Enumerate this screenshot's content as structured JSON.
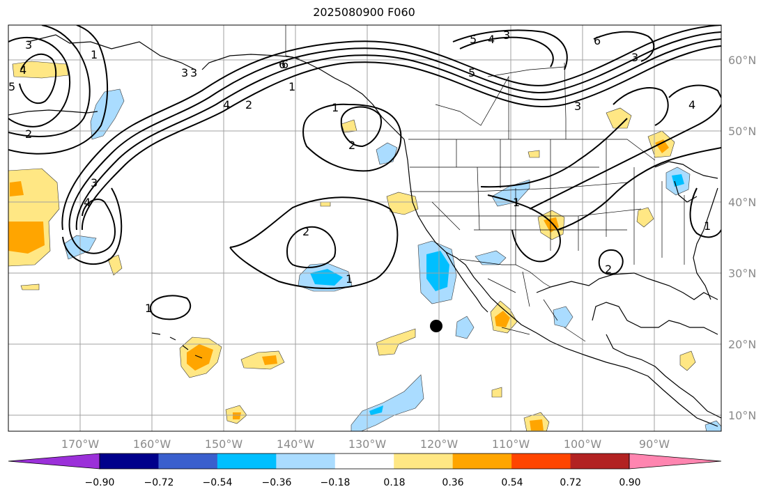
{
  "title": "2025080900 F060",
  "map": {
    "lon_ticks": [
      "170°W",
      "160°W",
      "150°W",
      "140°W",
      "130°W",
      "120°W",
      "110°W",
      "100°W",
      "90°W"
    ],
    "lat_ticks": [
      "60°N",
      "50°N",
      "40°N",
      "30°N",
      "20°N",
      "10°N"
    ],
    "marker": {
      "lon": -120,
      "lat": 22.5,
      "label": ""
    },
    "contour_labels": [
      "3",
      "4",
      "5",
      "2",
      "1",
      "6",
      "4",
      "3",
      "1",
      "3",
      "2",
      "4",
      "3",
      "2",
      "1",
      "2",
      "1",
      "6",
      "5",
      "3",
      "5",
      "4",
      "3",
      "6",
      "3",
      "4",
      "1",
      "2",
      "1",
      "1"
    ]
  },
  "colorbar": {
    "ticks": [
      "−0.90",
      "−0.72",
      "−0.54",
      "−0.36",
      "−0.18",
      "0.18",
      "0.36",
      "0.54",
      "0.72",
      "0.90"
    ],
    "colors": [
      "#9b30d9",
      "#00008b",
      "#3a5fcd",
      "#00bfff",
      "#aadcff",
      "#ffffff",
      "#ffe784",
      "#ffa500",
      "#ff4500",
      "#b22222",
      "#ff85b0"
    ]
  }
}
